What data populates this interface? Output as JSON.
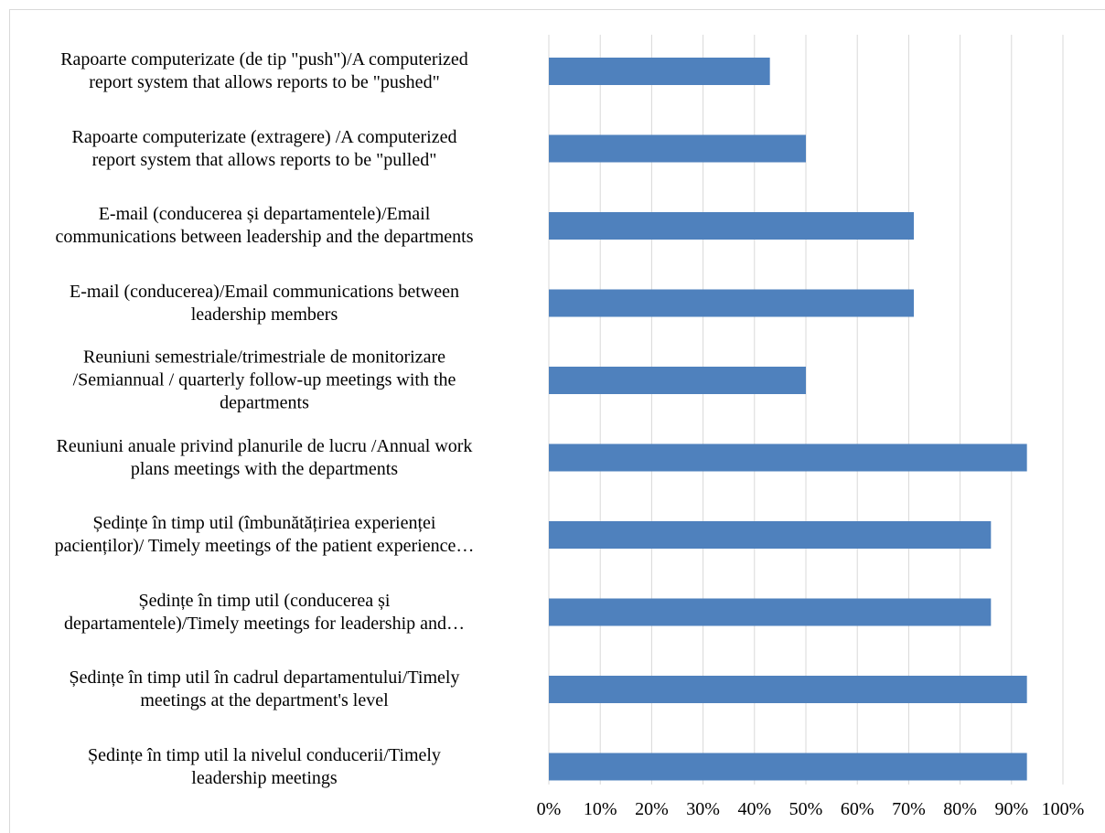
{
  "chart_data": {
    "type": "bar",
    "orientation": "horizontal",
    "title": "",
    "xlabel": "",
    "ylabel": "",
    "xlim": [
      0,
      1
    ],
    "x_ticks": [
      "0%",
      "10%",
      "20%",
      "30%",
      "40%",
      "50%",
      "60%",
      "70%",
      "80%",
      "90%",
      "100%"
    ],
    "grid": "vertical",
    "bar_color": "#4f81bd",
    "categories": [
      [
        "Rapoarte computerizate (de tip \"push\")/A computerized",
        "report system that allows reports to be \"pushed\""
      ],
      [
        "Rapoarte computerizate (extragere) /A computerized",
        "report system that allows reports to be \"pulled\""
      ],
      [
        "E-mail (conducerea și departamentele)/Email",
        "communications between leadership and the departments"
      ],
      [
        "E-mail (conducerea)/Email communications between",
        "leadership members"
      ],
      [
        "Reuniuni semestriale/trimestriale de monitorizare",
        "/Semiannual / quarterly follow-up meetings with the",
        "departments"
      ],
      [
        "Reuniuni anuale privind planurile de lucru /Annual work",
        "plans meetings with the departments"
      ],
      [
        "Ședințe în timp util (îmbunătățiriea experienței",
        "pacienților)/ Timely meetings of the patient experience…"
      ],
      [
        "Ședințe în timp util (conducerea și",
        "departamentele)/Timely meetings for leadership and…"
      ],
      [
        "Ședințe în timp util în cadrul departamentului/Timely",
        "meetings at the department's level"
      ],
      [
        "Ședințe în timp util la nivelul conducerii/Timely",
        "leadership meetings"
      ]
    ],
    "values": [
      0.43,
      0.5,
      0.71,
      0.71,
      0.5,
      0.93,
      0.86,
      0.86,
      0.93,
      0.93
    ]
  }
}
